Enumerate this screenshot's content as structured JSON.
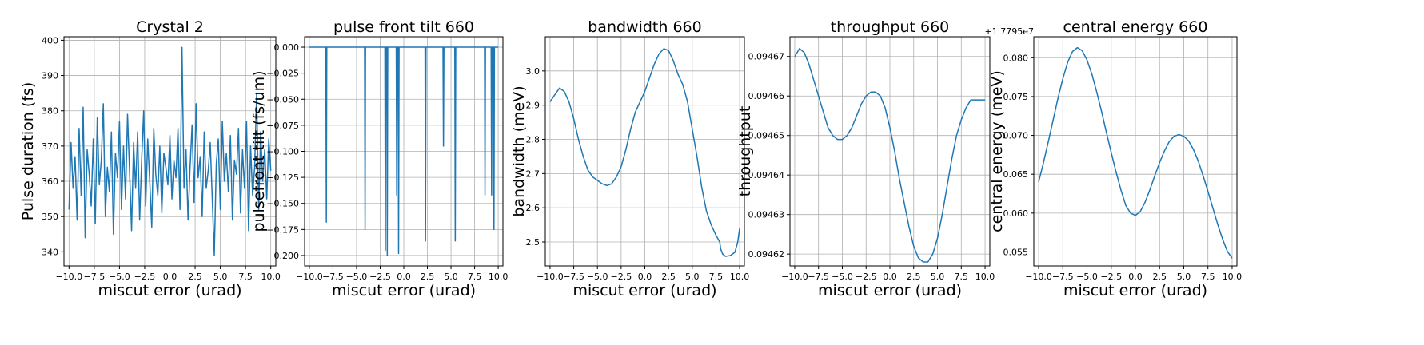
{
  "chart_data": [
    {
      "type": "line",
      "title": "Crystal 2",
      "xlabel": "miscut error (urad)",
      "ylabel": "Pulse duration (fs)",
      "xlim": [
        -10.5,
        10.5
      ],
      "ylim": [
        336,
        401
      ],
      "xticks": [
        -10.0,
        -7.5,
        -5.0,
        -2.5,
        0.0,
        2.5,
        5.0,
        7.5,
        10.0
      ],
      "xtick_labels": [
        "−10.0",
        "−7.5",
        "−5.0",
        "−2.5",
        "0.0",
        "2.5",
        "5.0",
        "7.5",
        "10.0"
      ],
      "yticks": [
        340,
        350,
        360,
        370,
        380,
        390,
        400
      ],
      "ytick_labels": [
        "340",
        "350",
        "360",
        "370",
        "380",
        "390",
        "400"
      ],
      "offset_text": "",
      "grid": true,
      "color": "#1f77b4",
      "series": [
        {
          "x": [
            -10.0,
            -9.8,
            -9.6,
            -9.4,
            -9.2,
            -9.0,
            -8.8,
            -8.6,
            -8.4,
            -8.2,
            -8.0,
            -7.8,
            -7.6,
            -7.4,
            -7.2,
            -7.0,
            -6.8,
            -6.6,
            -6.4,
            -6.2,
            -6.0,
            -5.8,
            -5.6,
            -5.4,
            -5.2,
            -5.0,
            -4.8,
            -4.6,
            -4.4,
            -4.2,
            -4.0,
            -3.8,
            -3.6,
            -3.4,
            -3.2,
            -3.0,
            -2.8,
            -2.6,
            -2.4,
            -2.2,
            -2.0,
            -1.8,
            -1.6,
            -1.4,
            -1.2,
            -1.0,
            -0.8,
            -0.6,
            -0.4,
            -0.2,
            0.0,
            0.2,
            0.4,
            0.6,
            0.8,
            1.0,
            1.2,
            1.4,
            1.6,
            1.8,
            2.0,
            2.2,
            2.4,
            2.6,
            2.8,
            3.0,
            3.2,
            3.4,
            3.6,
            3.8,
            4.0,
            4.2,
            4.4,
            4.6,
            4.8,
            5.0,
            5.2,
            5.4,
            5.6,
            5.8,
            6.0,
            6.2,
            6.4,
            6.6,
            6.8,
            7.0,
            7.2,
            7.4,
            7.6,
            7.8,
            8.0,
            8.2,
            8.4,
            8.6,
            8.8,
            9.0,
            9.2,
            9.4,
            9.6,
            9.8,
            10.0
          ],
          "y": [
            352,
            371,
            358,
            367,
            349,
            375,
            356,
            381,
            344,
            369,
            362,
            353,
            372,
            348,
            378,
            359,
            366,
            382,
            350,
            364,
            357,
            374,
            345,
            368,
            361,
            377,
            352,
            370,
            355,
            379,
            363,
            346,
            371,
            358,
            374,
            349,
            366,
            380,
            353,
            372,
            360,
            347,
            375,
            362,
            356,
            370,
            351,
            368,
            364,
            359,
            373,
            355,
            366,
            361,
            375,
            352,
            398,
            358,
            369,
            349,
            364,
            376,
            354,
            382,
            361,
            367,
            350,
            374,
            358,
            363,
            371,
            355,
            339,
            365,
            372,
            352,
            377,
            360,
            368,
            357,
            373,
            349,
            366,
            362,
            375,
            351,
            369,
            358,
            377,
            346,
            370,
            356,
            364,
            385,
            352,
            374,
            360,
            369,
            355,
            372,
            363
          ]
        }
      ]
    },
    {
      "type": "line",
      "title": "pulse front tilt 660",
      "xlabel": "miscut error (urad)",
      "ylabel": "pulsefront tilt (fs/um)",
      "xlim": [
        -10.5,
        10.5
      ],
      "ylim": [
        -0.21,
        0.01
      ],
      "xticks": [
        -10.0,
        -7.5,
        -5.0,
        -2.5,
        0.0,
        2.5,
        5.0,
        7.5,
        10.0
      ],
      "xtick_labels": [
        "−10.0",
        "−7.5",
        "−5.0",
        "−2.5",
        "0.0",
        "2.5",
        "5.0",
        "7.5",
        "10.0"
      ],
      "yticks": [
        0.0,
        -0.025,
        -0.05,
        -0.075,
        -0.1,
        -0.125,
        -0.15,
        -0.175,
        -0.2
      ],
      "ytick_labels": [
        "0.000",
        "−0.025",
        "−0.050",
        "−0.075",
        "−0.100",
        "−0.125",
        "−0.150",
        "−0.175",
        "−0.200"
      ],
      "offset_text": "",
      "grid": true,
      "color": "#1f77b4",
      "series": [
        {
          "x": [
            -10.0,
            -8.25,
            -8.2,
            -8.15,
            -4.15,
            -4.1,
            -4.05,
            -2.0,
            -1.95,
            -1.9,
            -1.8,
            -1.75,
            -1.7,
            -0.8,
            -0.75,
            -0.7,
            -0.6,
            -0.55,
            -0.5,
            2.25,
            2.3,
            2.35,
            4.15,
            4.2,
            4.25,
            5.4,
            5.45,
            5.5,
            8.55,
            8.6,
            8.65,
            9.25,
            9.3,
            9.35,
            9.5,
            9.55,
            9.6,
            10.0
          ],
          "y": [
            0.0,
            0.0,
            -0.168,
            0.0,
            0.0,
            -0.175,
            0.0,
            0.0,
            -0.195,
            0.0,
            0.0,
            -0.2,
            0.0,
            0.0,
            -0.142,
            0.0,
            0.0,
            -0.198,
            0.0,
            0.0,
            -0.186,
            0.0,
            0.0,
            -0.095,
            0.0,
            0.0,
            -0.186,
            0.0,
            0.0,
            -0.142,
            0.0,
            0.0,
            -0.142,
            0.0,
            0.0,
            -0.175,
            0.0,
            0.0
          ]
        }
      ]
    },
    {
      "type": "line",
      "title": "bandwidth 660",
      "xlabel": "miscut error (urad)",
      "ylabel": "bandwidth (meV)",
      "xlim": [
        -10.5,
        10.5
      ],
      "ylim": [
        2.43,
        3.1
      ],
      "xticks": [
        -10.0,
        -7.5,
        -5.0,
        -2.5,
        0.0,
        2.5,
        5.0,
        7.5,
        10.0
      ],
      "xtick_labels": [
        "−10.0",
        "−7.5",
        "−5.0",
        "−2.5",
        "0.0",
        "2.5",
        "5.0",
        "7.5",
        "10.0"
      ],
      "yticks": [
        2.5,
        2.6,
        2.7,
        2.8,
        2.9,
        3.0
      ],
      "ytick_labels": [
        "2.5",
        "2.6",
        "2.7",
        "2.8",
        "2.9",
        "3.0"
      ],
      "offset_text": "",
      "grid": true,
      "color": "#1f77b4",
      "series": [
        {
          "x": [
            -10.0,
            -9.5,
            -9.0,
            -8.5,
            -8.0,
            -7.5,
            -7.0,
            -6.5,
            -6.0,
            -5.5,
            -5.0,
            -4.5,
            -4.0,
            -3.5,
            -3.0,
            -2.5,
            -2.0,
            -1.5,
            -1.0,
            -0.5,
            0.0,
            0.5,
            1.0,
            1.5,
            2.0,
            2.5,
            3.0,
            3.5,
            4.0,
            4.5,
            5.0,
            5.5,
            6.0,
            6.5,
            7.0,
            7.5,
            7.9,
            8.0,
            8.2,
            8.5,
            9.0,
            9.5,
            9.8,
            10.0
          ],
          "y": [
            2.91,
            2.93,
            2.95,
            2.94,
            2.91,
            2.86,
            2.8,
            2.75,
            2.71,
            2.69,
            2.68,
            2.67,
            2.665,
            2.67,
            2.69,
            2.72,
            2.77,
            2.83,
            2.88,
            2.91,
            2.94,
            2.98,
            3.02,
            3.05,
            3.065,
            3.06,
            3.03,
            2.99,
            2.96,
            2.91,
            2.83,
            2.75,
            2.66,
            2.59,
            2.55,
            2.52,
            2.5,
            2.48,
            2.465,
            2.458,
            2.46,
            2.47,
            2.5,
            2.54
          ]
        }
      ]
    },
    {
      "type": "line",
      "title": "throughput 660",
      "xlabel": "miscut error (urad)",
      "ylabel": "throughtput",
      "xlim": [
        -10.5,
        10.5
      ],
      "ylim": [
        0.094617,
        0.094675
      ],
      "xticks": [
        -10.0,
        -7.5,
        -5.0,
        -2.5,
        0.0,
        2.5,
        5.0,
        7.5,
        10.0
      ],
      "xtick_labels": [
        "−10.0",
        "−7.5",
        "−5.0",
        "−2.5",
        "0.0",
        "2.5",
        "5.0",
        "7.5",
        "10.0"
      ],
      "yticks": [
        0.09462,
        0.09463,
        0.09464,
        0.09465,
        0.09466,
        0.09467
      ],
      "ytick_labels": [
        "0.09462",
        "0.09463",
        "0.09464",
        "0.09465",
        "0.09466",
        "0.09467"
      ],
      "offset_text": "",
      "grid": true,
      "color": "#1f77b4",
      "series": [
        {
          "x": [
            -10.0,
            -9.5,
            -9.0,
            -8.5,
            -8.0,
            -7.5,
            -7.0,
            -6.5,
            -6.0,
            -5.5,
            -5.0,
            -4.5,
            -4.0,
            -3.5,
            -3.0,
            -2.5,
            -2.0,
            -1.5,
            -1.0,
            -0.5,
            0.0,
            0.5,
            1.0,
            1.5,
            2.0,
            2.5,
            3.0,
            3.5,
            4.0,
            4.5,
            5.0,
            5.5,
            6.0,
            6.5,
            7.0,
            7.5,
            8.0,
            8.5,
            9.0,
            9.5,
            10.0
          ],
          "y": [
            0.09467,
            0.094672,
            0.094671,
            0.094668,
            0.094664,
            0.09466,
            0.094656,
            0.094652,
            0.09465,
            0.094649,
            0.094649,
            0.09465,
            0.094652,
            0.094655,
            0.094658,
            0.09466,
            0.094661,
            0.094661,
            0.09466,
            0.094657,
            0.094652,
            0.094646,
            0.094639,
            0.094633,
            0.094627,
            0.094622,
            0.094619,
            0.094618,
            0.094618,
            0.09462,
            0.094624,
            0.09463,
            0.094637,
            0.094644,
            0.09465,
            0.094654,
            0.094657,
            0.094659,
            0.094659,
            0.094659,
            0.094659
          ]
        }
      ]
    },
    {
      "type": "line",
      "title": "central energy 660",
      "xlabel": "miscut error (urad)",
      "ylabel": "central energy (meV)",
      "xlim": [
        -10.5,
        10.5
      ],
      "ylim": [
        0.0532,
        0.0827
      ],
      "xticks": [
        -10.0,
        -7.5,
        -5.0,
        -2.5,
        0.0,
        2.5,
        5.0,
        7.5,
        10.0
      ],
      "xtick_labels": [
        "−10.0",
        "−7.5",
        "−5.0",
        "−2.5",
        "0.0",
        "2.5",
        "5.0",
        "7.5",
        "10.0"
      ],
      "yticks": [
        0.055,
        0.06,
        0.065,
        0.07,
        0.075,
        0.08
      ],
      "ytick_labels": [
        "0.055",
        "0.060",
        "0.065",
        "0.070",
        "0.075",
        "0.080"
      ],
      "offset_text": "+1.7795e7",
      "grid": true,
      "color": "#1f77b4",
      "series": [
        {
          "x": [
            -10.0,
            -9.5,
            -9.0,
            -8.5,
            -8.0,
            -7.5,
            -7.0,
            -6.5,
            -6.0,
            -5.5,
            -5.0,
            -4.5,
            -4.0,
            -3.5,
            -3.0,
            -2.5,
            -2.0,
            -1.5,
            -1.0,
            -0.5,
            0.0,
            0.5,
            1.0,
            1.5,
            2.0,
            2.5,
            3.0,
            3.5,
            4.0,
            4.5,
            5.0,
            5.5,
            6.0,
            6.5,
            7.0,
            7.5,
            8.0,
            8.5,
            9.0,
            9.5,
            10.0
          ],
          "y": [
            0.064,
            0.0665,
            0.0692,
            0.072,
            0.0748,
            0.0773,
            0.0794,
            0.0808,
            0.0813,
            0.0809,
            0.0797,
            0.0779,
            0.0756,
            0.0731,
            0.0704,
            0.0678,
            0.0653,
            0.063,
            0.061,
            0.06,
            0.0597,
            0.0602,
            0.0614,
            0.063,
            0.0648,
            0.0665,
            0.068,
            0.0692,
            0.0699,
            0.0701,
            0.0699,
            0.0693,
            0.0682,
            0.0667,
            0.0648,
            0.0628,
            0.0607,
            0.0586,
            0.0567,
            0.0551,
            0.0542
          ]
        }
      ]
    }
  ]
}
